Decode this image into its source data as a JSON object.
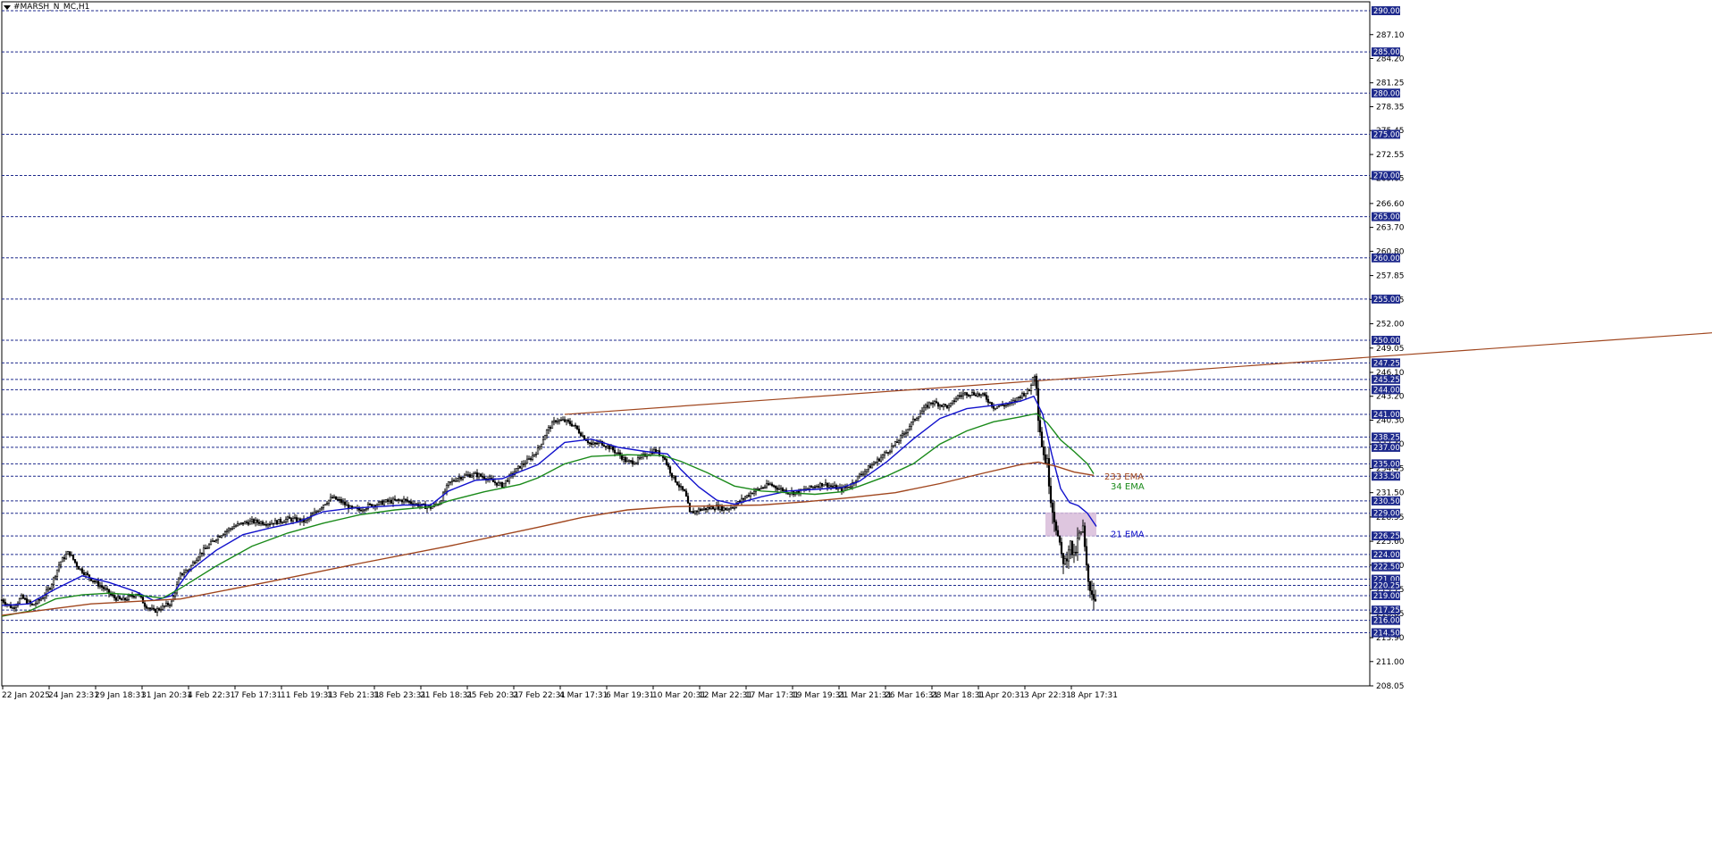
{
  "window": {
    "symbol_label": "#MARSH_N_MC,H1"
  },
  "chart_data": {
    "type": "candlestick",
    "title": "#MARSH_N_MC,H1",
    "ylim": [
      208.05,
      290.0
    ],
    "y_scale_labels": [
      "287.10",
      "284.20",
      "281.25",
      "278.35",
      "275.45",
      "272.55",
      "269.65",
      "266.60",
      "263.70",
      "260.80",
      "257.85",
      "254.95",
      "252.00",
      "249.05",
      "246.10",
      "243.20",
      "240.30",
      "237.40",
      "234.45",
      "231.50",
      "228.55",
      "225.60",
      "222.70",
      "219.75",
      "216.85",
      "213.90",
      "211.00",
      "208.05"
    ],
    "price_levels": [
      "290.00",
      "285.00",
      "280.00",
      "275.00",
      "270.00",
      "265.00",
      "260.00",
      "255.00",
      "250.00",
      "247.25",
      "245.25",
      "244.00",
      "241.00",
      "238.25",
      "237.00",
      "235.00",
      "233.50",
      "230.50",
      "229.00",
      "226.25",
      "224.00",
      "222.50",
      "221.00",
      "220.25",
      "219.00",
      "217.25",
      "216.00",
      "214.50"
    ],
    "x_labels": [
      "22 Jan 2025",
      "24 Jan 23:31",
      "29 Jan 18:31",
      "31 Jan 20:31",
      "4 Feb 22:31",
      "7 Feb 17:31",
      "11 Feb 19:31",
      "13 Feb 21:31",
      "18 Feb 23:31",
      "21 Feb 18:31",
      "25 Feb 20:31",
      "27 Feb 22:31",
      "4 Mar 17:31",
      "6 Mar 19:31",
      "10 Mar 20:31",
      "12 Mar 22:31",
      "17 Mar 17:31",
      "19 Mar 19:31",
      "21 Mar 21:31",
      "26 Mar 16:31",
      "28 Mar 18:31",
      "1 Apr 20:31",
      "3 Apr 22:31",
      "8 Apr 17:31"
    ],
    "price_path": [
      [
        0,
        218.5
      ],
      [
        12,
        217.5
      ],
      [
        22,
        218.8
      ],
      [
        34,
        217.8
      ],
      [
        45,
        218.7
      ],
      [
        55,
        220.2
      ],
      [
        65,
        223.0
      ],
      [
        75,
        224.3
      ],
      [
        85,
        222.5
      ],
      [
        95,
        221.5
      ],
      [
        105,
        220.6
      ],
      [
        115,
        219.8
      ],
      [
        125,
        218.8
      ],
      [
        135,
        218.4
      ],
      [
        145,
        218.9
      ],
      [
        152,
        219.3
      ],
      [
        160,
        217.9
      ],
      [
        170,
        217.1
      ],
      [
        180,
        217.6
      ],
      [
        190,
        218.2
      ],
      [
        200,
        221.5
      ],
      [
        210,
        222.3
      ],
      [
        220,
        223.9
      ],
      [
        230,
        224.9
      ],
      [
        240,
        226.0
      ],
      [
        250,
        226.8
      ],
      [
        260,
        227.4
      ],
      [
        270,
        227.8
      ],
      [
        280,
        228.0
      ],
      [
        290,
        227.9
      ],
      [
        300,
        227.8
      ],
      [
        310,
        228.0
      ],
      [
        320,
        228.3
      ],
      [
        330,
        228.2
      ],
      [
        340,
        228.0
      ],
      [
        350,
        229.0
      ],
      [
        360,
        230.1
      ],
      [
        370,
        230.9
      ],
      [
        380,
        230.4
      ],
      [
        390,
        229.6
      ],
      [
        400,
        229.4
      ],
      [
        410,
        229.9
      ],
      [
        420,
        230.1
      ],
      [
        430,
        230.4
      ],
      [
        440,
        230.5
      ],
      [
        450,
        230.6
      ],
      [
        460,
        230.2
      ],
      [
        470,
        229.9
      ],
      [
        480,
        229.7
      ],
      [
        490,
        230.3
      ],
      [
        500,
        232.6
      ],
      [
        510,
        233.3
      ],
      [
        520,
        233.6
      ],
      [
        530,
        233.7
      ],
      [
        540,
        233.4
      ],
      [
        550,
        232.8
      ],
      [
        560,
        232.4
      ],
      [
        570,
        233.6
      ],
      [
        580,
        234.7
      ],
      [
        590,
        235.5
      ],
      [
        600,
        236.7
      ],
      [
        610,
        239.0
      ],
      [
        620,
        240.3
      ],
      [
        630,
        240.2
      ],
      [
        640,
        239.7
      ],
      [
        650,
        238.4
      ],
      [
        660,
        237.3
      ],
      [
        670,
        237.6
      ],
      [
        680,
        237.0
      ],
      [
        690,
        236.2
      ],
      [
        700,
        235.2
      ],
      [
        710,
        235.3
      ],
      [
        720,
        236.1
      ],
      [
        730,
        236.6
      ],
      [
        740,
        236.0
      ],
      [
        750,
        233.6
      ],
      [
        760,
        232.0
      ],
      [
        765,
        231.4
      ],
      [
        770,
        229.0
      ],
      [
        780,
        229.4
      ],
      [
        790,
        229.6
      ],
      [
        800,
        229.8
      ],
      [
        810,
        229.5
      ],
      [
        820,
        229.9
      ],
      [
        830,
        230.8
      ],
      [
        840,
        231.6
      ],
      [
        850,
        232.1
      ],
      [
        860,
        232.5
      ],
      [
        870,
        232.0
      ],
      [
        880,
        231.6
      ],
      [
        890,
        231.5
      ],
      [
        900,
        231.9
      ],
      [
        910,
        232.3
      ],
      [
        920,
        232.6
      ],
      [
        930,
        232.2
      ],
      [
        940,
        231.9
      ],
      [
        950,
        232.4
      ],
      [
        960,
        233.6
      ],
      [
        970,
        234.5
      ],
      [
        980,
        235.4
      ],
      [
        990,
        236.4
      ],
      [
        1000,
        237.4
      ],
      [
        1010,
        238.7
      ],
      [
        1020,
        240.2
      ],
      [
        1030,
        241.4
      ],
      [
        1040,
        242.5
      ],
      [
        1050,
        242.2
      ],
      [
        1060,
        241.9
      ],
      [
        1070,
        243.2
      ],
      [
        1080,
        243.6
      ],
      [
        1090,
        243.5
      ],
      [
        1100,
        243.2
      ],
      [
        1110,
        241.9
      ],
      [
        1120,
        242.1
      ],
      [
        1130,
        242.3
      ],
      [
        1140,
        243.3
      ],
      [
        1150,
        243.9
      ],
      [
        1157,
        246.6
      ],
      [
        1160,
        241.0
      ],
      [
        1165,
        236.5
      ],
      [
        1170,
        235.0
      ],
      [
        1175,
        230.0
      ],
      [
        1180,
        227.5
      ],
      [
        1185,
        224.0
      ],
      [
        1190,
        223.0
      ],
      [
        1195,
        225.5
      ],
      [
        1200,
        223.5
      ],
      [
        1205,
        226.0
      ],
      [
        1210,
        227.0
      ],
      [
        1215,
        221.0
      ],
      [
        1220,
        219.5
      ],
      [
        1225,
        218.3
      ]
    ],
    "series": [
      {
        "name": "21 EMA",
        "color": "#1111cc",
        "points": [
          [
            0,
            217.8
          ],
          [
            30,
            218.0
          ],
          [
            60,
            219.8
          ],
          [
            90,
            221.4
          ],
          [
            120,
            220.6
          ],
          [
            150,
            219.5
          ],
          [
            170,
            218.4
          ],
          [
            190,
            219.0
          ],
          [
            210,
            222.0
          ],
          [
            240,
            224.5
          ],
          [
            270,
            226.4
          ],
          [
            300,
            227.2
          ],
          [
            330,
            227.9
          ],
          [
            360,
            229.2
          ],
          [
            390,
            229.6
          ],
          [
            420,
            229.8
          ],
          [
            450,
            230.0
          ],
          [
            480,
            230.0
          ],
          [
            500,
            231.7
          ],
          [
            530,
            233.0
          ],
          [
            560,
            233.2
          ],
          [
            600,
            234.9
          ],
          [
            630,
            237.6
          ],
          [
            660,
            238.0
          ],
          [
            690,
            237.0
          ],
          [
            720,
            236.5
          ],
          [
            745,
            236.2
          ],
          [
            760,
            234.3
          ],
          [
            780,
            232.2
          ],
          [
            800,
            230.6
          ],
          [
            820,
            230.1
          ],
          [
            850,
            231.0
          ],
          [
            880,
            231.7
          ],
          [
            910,
            231.9
          ],
          [
            940,
            232.1
          ],
          [
            960,
            232.9
          ],
          [
            990,
            235.2
          ],
          [
            1020,
            238.0
          ],
          [
            1050,
            240.5
          ],
          [
            1080,
            241.7
          ],
          [
            1110,
            242.1
          ],
          [
            1140,
            242.6
          ],
          [
            1155,
            243.2
          ],
          [
            1165,
            241.0
          ],
          [
            1175,
            236.2
          ],
          [
            1185,
            232.0
          ],
          [
            1195,
            230.3
          ],
          [
            1205,
            229.9
          ],
          [
            1215,
            229.0
          ],
          [
            1225,
            227.4
          ]
        ]
      },
      {
        "name": "34 EMA",
        "color": "#1a8a1a",
        "points": [
          [
            0,
            216.5
          ],
          [
            30,
            217.1
          ],
          [
            60,
            218.6
          ],
          [
            90,
            219.1
          ],
          [
            120,
            219.3
          ],
          [
            150,
            219.1
          ],
          [
            180,
            218.7
          ],
          [
            200,
            219.9
          ],
          [
            240,
            222.6
          ],
          [
            280,
            225.0
          ],
          [
            320,
            226.6
          ],
          [
            360,
            227.8
          ],
          [
            400,
            228.8
          ],
          [
            440,
            229.4
          ],
          [
            480,
            229.8
          ],
          [
            500,
            230.5
          ],
          [
            540,
            231.6
          ],
          [
            580,
            232.5
          ],
          [
            600,
            233.3
          ],
          [
            630,
            235.0
          ],
          [
            660,
            235.9
          ],
          [
            700,
            236.1
          ],
          [
            740,
            236.0
          ],
          [
            760,
            235.3
          ],
          [
            790,
            233.9
          ],
          [
            820,
            232.3
          ],
          [
            850,
            231.7
          ],
          [
            880,
            231.5
          ],
          [
            910,
            231.3
          ],
          [
            940,
            231.6
          ],
          [
            960,
            232.3
          ],
          [
            990,
            233.5
          ],
          [
            1020,
            235.0
          ],
          [
            1050,
            237.4
          ],
          [
            1080,
            239.0
          ],
          [
            1110,
            240.1
          ],
          [
            1140,
            240.7
          ],
          [
            1158,
            241.1
          ],
          [
            1170,
            240.0
          ],
          [
            1185,
            237.9
          ],
          [
            1200,
            236.5
          ],
          [
            1215,
            235.0
          ],
          [
            1222,
            233.8
          ]
        ]
      },
      {
        "name": "233 EMA",
        "color": "#a0461e",
        "points": [
          [
            0,
            216.6
          ],
          [
            100,
            218.0
          ],
          [
            200,
            218.6
          ],
          [
            300,
            220.7
          ],
          [
            400,
            222.9
          ],
          [
            500,
            225.0
          ],
          [
            600,
            227.3
          ],
          [
            650,
            228.5
          ],
          [
            700,
            229.4
          ],
          [
            750,
            229.8
          ],
          [
            800,
            229.9
          ],
          [
            850,
            230.0
          ],
          [
            900,
            230.4
          ],
          [
            950,
            230.9
          ],
          [
            1000,
            231.5
          ],
          [
            1050,
            232.6
          ],
          [
            1100,
            233.9
          ],
          [
            1140,
            234.9
          ],
          [
            1160,
            235.2
          ],
          [
            1180,
            234.7
          ],
          [
            1200,
            234.0
          ],
          [
            1222,
            233.6
          ]
        ]
      }
    ],
    "trendline": {
      "color": "#a0461e",
      "from": [
        630,
        241.0
      ],
      "to": [
        1916,
        250.9
      ]
    },
    "band": {
      "label": "",
      "x1": 1168,
      "x2": 1225,
      "top": 229.1,
      "bottom": 226.2,
      "color": "#d8bcd9"
    },
    "ema_labels": [
      {
        "text": "233 EMA",
        "color": "#a0461e",
        "price": 233.4
      },
      {
        "text": "34 EMA",
        "color": "#1a8a1a",
        "price": 232.2
      },
      {
        "text": "21 EMA",
        "color": "#1111cc",
        "price": 226.4
      }
    ],
    "colors": {
      "grid": "#1e2a8c",
      "axis_box": "#1e2a8c",
      "candle": "#000000"
    }
  }
}
